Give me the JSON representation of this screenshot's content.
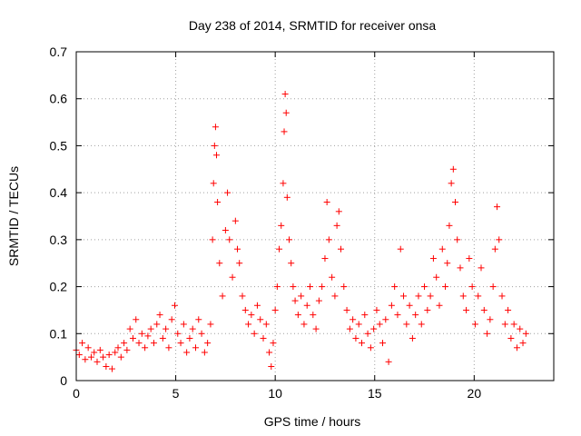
{
  "chart_data": {
    "type": "scatter",
    "title": "Day 238 of 2014, SRMTID for receiver onsa",
    "xlabel": "GPS time / hours",
    "ylabel": "SRMTID / TECUs",
    "xlim": [
      0,
      24
    ],
    "ylim": [
      0,
      0.7
    ],
    "xticks": [
      0,
      5,
      10,
      15,
      20
    ],
    "xtick_labels": [
      "0",
      "5",
      "10",
      "15",
      "20"
    ],
    "yticks": [
      0,
      0.1,
      0.2,
      0.3,
      0.4,
      0.5,
      0.6,
      0.7
    ],
    "ytick_labels": [
      "0",
      "0.1",
      "0.2",
      "0.3",
      "0.4",
      "0.5",
      "0.6",
      "0.7"
    ],
    "grid": true,
    "marker": "+",
    "series_color": "#ff0000",
    "series": [
      {
        "name": "onsa",
        "points": [
          [
            0.0,
            0.065
          ],
          [
            0.15,
            0.055
          ],
          [
            0.3,
            0.08
          ],
          [
            0.45,
            0.045
          ],
          [
            0.6,
            0.07
          ],
          [
            0.75,
            0.05
          ],
          [
            0.9,
            0.06
          ],
          [
            1.05,
            0.04
          ],
          [
            1.2,
            0.065
          ],
          [
            1.35,
            0.05
          ],
          [
            1.5,
            0.03
          ],
          [
            1.65,
            0.055
          ],
          [
            1.8,
            0.025
          ],
          [
            1.95,
            0.06
          ],
          [
            2.1,
            0.07
          ],
          [
            2.25,
            0.05
          ],
          [
            2.4,
            0.08
          ],
          [
            2.55,
            0.065
          ],
          [
            2.7,
            0.11
          ],
          [
            2.85,
            0.09
          ],
          [
            3.0,
            0.13
          ],
          [
            3.15,
            0.08
          ],
          [
            3.3,
            0.1
          ],
          [
            3.45,
            0.07
          ],
          [
            3.6,
            0.095
          ],
          [
            3.75,
            0.11
          ],
          [
            3.9,
            0.08
          ],
          [
            4.05,
            0.12
          ],
          [
            4.2,
            0.14
          ],
          [
            4.35,
            0.09
          ],
          [
            4.5,
            0.11
          ],
          [
            4.65,
            0.07
          ],
          [
            4.8,
            0.13
          ],
          [
            4.95,
            0.16
          ],
          [
            5.1,
            0.1
          ],
          [
            5.25,
            0.08
          ],
          [
            5.4,
            0.12
          ],
          [
            5.55,
            0.06
          ],
          [
            5.7,
            0.09
          ],
          [
            5.85,
            0.11
          ],
          [
            6.0,
            0.07
          ],
          [
            6.15,
            0.13
          ],
          [
            6.3,
            0.1
          ],
          [
            6.45,
            0.06
          ],
          [
            6.6,
            0.08
          ],
          [
            6.75,
            0.12
          ],
          [
            6.85,
            0.3
          ],
          [
            6.9,
            0.42
          ],
          [
            6.95,
            0.5
          ],
          [
            7.0,
            0.54
          ],
          [
            7.05,
            0.48
          ],
          [
            7.1,
            0.38
          ],
          [
            7.2,
            0.25
          ],
          [
            7.35,
            0.18
          ],
          [
            7.5,
            0.32
          ],
          [
            7.6,
            0.4
          ],
          [
            7.7,
            0.3
          ],
          [
            7.85,
            0.22
          ],
          [
            8.0,
            0.34
          ],
          [
            8.1,
            0.28
          ],
          [
            8.2,
            0.25
          ],
          [
            8.35,
            0.18
          ],
          [
            8.5,
            0.15
          ],
          [
            8.65,
            0.12
          ],
          [
            8.8,
            0.14
          ],
          [
            8.95,
            0.1
          ],
          [
            9.1,
            0.16
          ],
          [
            9.25,
            0.13
          ],
          [
            9.4,
            0.09
          ],
          [
            9.55,
            0.12
          ],
          [
            9.7,
            0.06
          ],
          [
            9.8,
            0.03
          ],
          [
            9.9,
            0.08
          ],
          [
            10.0,
            0.15
          ],
          [
            10.1,
            0.2
          ],
          [
            10.2,
            0.28
          ],
          [
            10.3,
            0.33
          ],
          [
            10.4,
            0.42
          ],
          [
            10.45,
            0.53
          ],
          [
            10.5,
            0.61
          ],
          [
            10.55,
            0.57
          ],
          [
            10.6,
            0.39
          ],
          [
            10.7,
            0.3
          ],
          [
            10.8,
            0.25
          ],
          [
            10.9,
            0.2
          ],
          [
            11.0,
            0.17
          ],
          [
            11.15,
            0.14
          ],
          [
            11.3,
            0.18
          ],
          [
            11.45,
            0.12
          ],
          [
            11.6,
            0.16
          ],
          [
            11.75,
            0.2
          ],
          [
            11.9,
            0.14
          ],
          [
            12.05,
            0.11
          ],
          [
            12.2,
            0.17
          ],
          [
            12.35,
            0.2
          ],
          [
            12.5,
            0.26
          ],
          [
            12.6,
            0.38
          ],
          [
            12.7,
            0.3
          ],
          [
            12.85,
            0.22
          ],
          [
            13.0,
            0.18
          ],
          [
            13.1,
            0.33
          ],
          [
            13.2,
            0.36
          ],
          [
            13.3,
            0.28
          ],
          [
            13.45,
            0.2
          ],
          [
            13.6,
            0.15
          ],
          [
            13.75,
            0.11
          ],
          [
            13.9,
            0.13
          ],
          [
            14.05,
            0.09
          ],
          [
            14.2,
            0.12
          ],
          [
            14.35,
            0.08
          ],
          [
            14.5,
            0.14
          ],
          [
            14.65,
            0.1
          ],
          [
            14.8,
            0.07
          ],
          [
            14.95,
            0.11
          ],
          [
            15.1,
            0.15
          ],
          [
            15.25,
            0.12
          ],
          [
            15.4,
            0.08
          ],
          [
            15.55,
            0.13
          ],
          [
            15.7,
            0.04
          ],
          [
            15.85,
            0.16
          ],
          [
            16.0,
            0.2
          ],
          [
            16.15,
            0.14
          ],
          [
            16.3,
            0.28
          ],
          [
            16.45,
            0.18
          ],
          [
            16.6,
            0.12
          ],
          [
            16.75,
            0.16
          ],
          [
            16.9,
            0.09
          ],
          [
            17.05,
            0.14
          ],
          [
            17.2,
            0.18
          ],
          [
            17.35,
            0.12
          ],
          [
            17.5,
            0.2
          ],
          [
            17.65,
            0.15
          ],
          [
            17.8,
            0.18
          ],
          [
            17.95,
            0.26
          ],
          [
            18.1,
            0.22
          ],
          [
            18.25,
            0.16
          ],
          [
            18.4,
            0.28
          ],
          [
            18.55,
            0.2
          ],
          [
            18.65,
            0.25
          ],
          [
            18.75,
            0.33
          ],
          [
            18.85,
            0.42
          ],
          [
            18.95,
            0.45
          ],
          [
            19.05,
            0.38
          ],
          [
            19.15,
            0.3
          ],
          [
            19.3,
            0.24
          ],
          [
            19.45,
            0.18
          ],
          [
            19.6,
            0.15
          ],
          [
            19.75,
            0.26
          ],
          [
            19.9,
            0.2
          ],
          [
            20.05,
            0.12
          ],
          [
            20.2,
            0.18
          ],
          [
            20.35,
            0.24
          ],
          [
            20.5,
            0.15
          ],
          [
            20.65,
            0.1
          ],
          [
            20.8,
            0.13
          ],
          [
            20.95,
            0.2
          ],
          [
            21.05,
            0.28
          ],
          [
            21.15,
            0.37
          ],
          [
            21.25,
            0.3
          ],
          [
            21.4,
            0.18
          ],
          [
            21.55,
            0.12
          ],
          [
            21.7,
            0.15
          ],
          [
            21.85,
            0.09
          ],
          [
            22.0,
            0.12
          ],
          [
            22.15,
            0.07
          ],
          [
            22.3,
            0.11
          ],
          [
            22.45,
            0.08
          ],
          [
            22.6,
            0.1
          ]
        ]
      }
    ]
  }
}
